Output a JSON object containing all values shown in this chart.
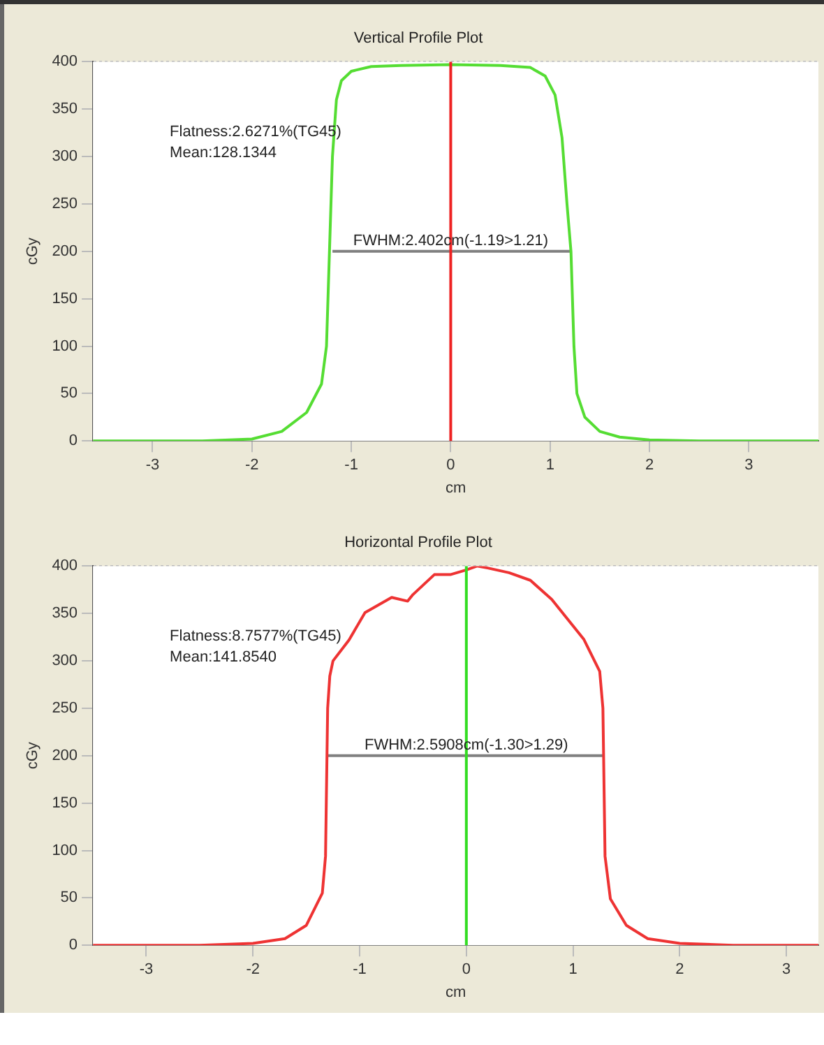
{
  "chart_data": [
    {
      "type": "line",
      "title": "Vertical Profile Plot",
      "xlabel": "cm",
      "ylabel": "cGy",
      "xlim": [
        -3.6,
        3.7
      ],
      "xticks": [
        -3,
        -2,
        -1,
        0,
        1,
        2,
        3
      ],
      "ylim": [
        0,
        400
      ],
      "yticks": [
        0,
        50,
        100,
        150,
        200,
        250,
        300,
        350,
        400
      ],
      "grid": true,
      "legend": false,
      "marker": "none",
      "line_style": "solid",
      "series": [
        {
          "color": "#55dd33",
          "x": [
            -3.6,
            -2.5,
            -2.0,
            -1.7,
            -1.45,
            -1.3,
            -1.25,
            -1.22,
            -1.19,
            -1.15,
            -1.1,
            -1.0,
            -0.8,
            -0.5,
            0,
            0.5,
            0.8,
            0.95,
            1.05,
            1.12,
            1.17,
            1.21,
            1.24,
            1.27,
            1.35,
            1.5,
            1.7,
            2.0,
            2.5,
            3.7
          ],
          "values": [
            0,
            0,
            2,
            10,
            30,
            60,
            100,
            200,
            300,
            360,
            380,
            390,
            395,
            396,
            397,
            396,
            394,
            385,
            365,
            320,
            250,
            200,
            100,
            50,
            25,
            10,
            4,
            1,
            0,
            0
          ]
        },
        {
          "type": "line",
          "color": "#808080",
          "x": [
            -1.19,
            1.21
          ],
          "values": [
            200,
            200
          ]
        }
      ],
      "ref_lines": [
        {
          "axis": "x",
          "value": 0,
          "color": "#ee2222"
        }
      ],
      "annotations": [
        "Flatness:2.6271%(TG45)",
        "Mean:128.1344",
        {
          "text": "FWHM:2.402cm(-1.19>1.21)",
          "x": 0,
          "y": 200
        }
      ]
    },
    {
      "type": "line",
      "title": "Horizontal Profile Plot",
      "xlabel": "cm",
      "ylabel": "cGy",
      "xlim": [
        -3.5,
        3.3
      ],
      "xticks": [
        -3,
        -2,
        -1,
        0,
        1,
        2,
        3
      ],
      "ylim": [
        0,
        400
      ],
      "yticks": [
        0,
        50,
        100,
        150,
        200,
        250,
        300,
        350,
        400
      ],
      "grid": true,
      "legend": false,
      "marker": "none",
      "line_style": "solid",
      "series": [
        {
          "color": "#ee3333",
          "x": [
            -3.5,
            -2.5,
            -2.0,
            -1.7,
            -1.5,
            -1.35,
            -1.32,
            -1.3,
            -1.28,
            -1.25,
            -1.1,
            -0.95,
            -0.7,
            -0.55,
            -0.5,
            -0.3,
            -0.15,
            0,
            0.1,
            0.2,
            0.4,
            0.6,
            0.8,
            1.0,
            1.1,
            1.25,
            1.28,
            1.3,
            1.35,
            1.5,
            1.7,
            2.0,
            2.5,
            3.3
          ],
          "values": [
            0,
            0,
            2,
            7,
            21,
            55,
            94,
            250,
            284,
            300,
            322,
            351,
            367,
            363,
            370,
            391,
            391,
            396,
            400,
            398,
            393,
            385,
            365,
            337,
            323,
            289,
            250,
            94,
            49,
            21,
            7,
            2,
            0,
            0
          ]
        },
        {
          "type": "line",
          "color": "#808080",
          "x": [
            -1.3,
            1.29
          ],
          "values": [
            200,
            200
          ]
        }
      ],
      "ref_lines": [
        {
          "axis": "x",
          "value": 0,
          "color": "#33dd22"
        }
      ],
      "annotations": [
        "Flatness:8.7577%(TG45)",
        "Mean:141.8540",
        {
          "text": "FWHM:2.5908cm(-1.30>1.29)",
          "x": 0,
          "y": 200
        }
      ]
    }
  ]
}
